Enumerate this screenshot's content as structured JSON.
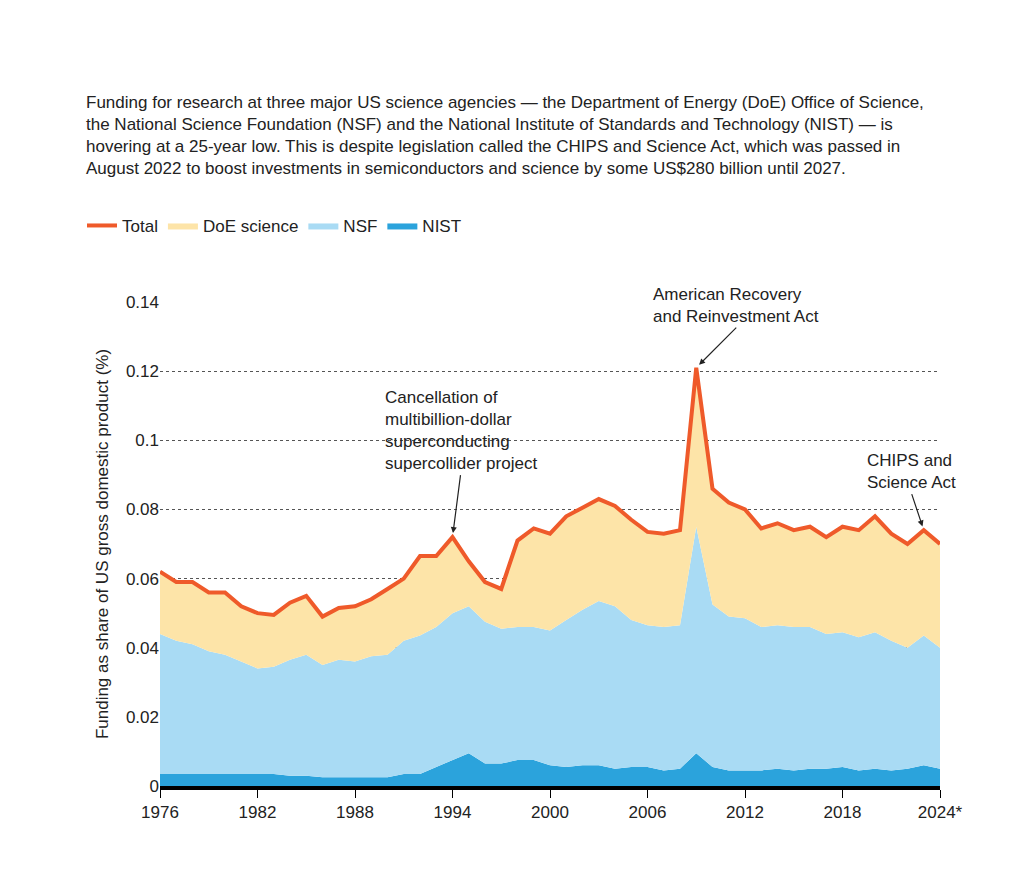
{
  "chart_data": {
    "type": "area",
    "subtitle": "Funding for research at three major US science agencies — the Department of Energy (DoE) Office of Science, the National Science Foundation (NSF) and the National Institute of Standards and Technology (NIST) — is hovering at a 25-year low. This is despite legislation called the CHIPS and Science Act, which was passed in August 2022 to boost investments in semiconductors and science by some US$280 billion until 2027.",
    "y_label": "Funding as share of US gross domestic product (%)",
    "stacked": true,
    "grid": true,
    "legend": "top",
    "x": [
      1976,
      1977,
      1978,
      1979,
      1980,
      1981,
      1982,
      1983,
      1984,
      1985,
      1986,
      1987,
      1988,
      1989,
      1990,
      1991,
      1992,
      1993,
      1994,
      1995,
      1996,
      1997,
      1998,
      1999,
      2000,
      2001,
      2002,
      2003,
      2004,
      2005,
      2006,
      2007,
      2008,
      2009,
      2010,
      2011,
      2012,
      2013,
      2014,
      2015,
      2016,
      2017,
      2018,
      2019,
      2020,
      2021,
      2022,
      2023,
      2024
    ],
    "xlim": [
      1976,
      2024
    ],
    "xticks": [
      1976,
      1982,
      1988,
      1994,
      2000,
      2006,
      2012,
      2018,
      {
        "value": 2024,
        "label": "2024*"
      }
    ],
    "ylim": [
      0,
      0.14
    ],
    "yticks": [
      0,
      0.02,
      0.04,
      0.06,
      0.08,
      0.1,
      0.12,
      0.14
    ],
    "series": [
      {
        "name": "Total",
        "type": "line",
        "color": "#ef5a2a",
        "values": [
          0.062,
          0.059,
          0.059,
          0.056,
          0.056,
          0.052,
          0.05,
          0.0495,
          0.053,
          0.055,
          0.049,
          0.0515,
          0.052,
          0.054,
          0.057,
          0.06,
          0.0665,
          0.0665,
          0.072,
          0.065,
          0.059,
          0.057,
          0.071,
          0.0745,
          0.073,
          0.078,
          0.0805,
          0.083,
          0.081,
          0.077,
          0.0735,
          0.073,
          0.074,
          0.121,
          0.086,
          0.082,
          0.08,
          0.0745,
          0.076,
          0.074,
          0.075,
          0.072,
          0.075,
          0.074,
          0.078,
          0.073,
          0.07,
          0.074,
          0.07
        ]
      },
      {
        "name": "DoE science",
        "type": "area",
        "color": "#fde4a8",
        "values": [
          0.018,
          0.017,
          0.018,
          0.017,
          0.018,
          0.016,
          0.016,
          0.015,
          0.0165,
          0.017,
          0.014,
          0.015,
          0.016,
          0.0165,
          0.019,
          0.018,
          0.023,
          0.0205,
          0.022,
          0.013,
          0.0115,
          0.0115,
          0.025,
          0.0285,
          0.028,
          0.03,
          0.0295,
          0.0295,
          0.029,
          0.029,
          0.027,
          0.027,
          0.0275,
          0.046,
          0.0335,
          0.033,
          0.0315,
          0.0285,
          0.0295,
          0.028,
          0.029,
          0.028,
          0.0305,
          0.031,
          0.0335,
          0.031,
          0.03,
          0.0305,
          0.03
        ]
      },
      {
        "name": "NSF",
        "type": "area",
        "color": "#a9dbf4",
        "values": [
          0.0405,
          0.0385,
          0.0375,
          0.0355,
          0.0345,
          0.0325,
          0.0305,
          0.031,
          0.0335,
          0.035,
          0.0325,
          0.034,
          0.0335,
          0.035,
          0.0355,
          0.0385,
          0.04,
          0.0405,
          0.0425,
          0.0425,
          0.041,
          0.039,
          0.0385,
          0.0385,
          0.039,
          0.0425,
          0.045,
          0.0475,
          0.047,
          0.0425,
          0.041,
          0.0415,
          0.0415,
          0.0655,
          0.047,
          0.0445,
          0.044,
          0.0415,
          0.0415,
          0.0415,
          0.041,
          0.039,
          0.039,
          0.0385,
          0.0395,
          0.0375,
          0.035,
          0.0375,
          0.035
        ]
      },
      {
        "name": "NIST",
        "type": "area",
        "color": "#2ba3dc",
        "values": [
          0.0035,
          0.0035,
          0.0035,
          0.0035,
          0.0035,
          0.0035,
          0.0035,
          0.0035,
          0.003,
          0.003,
          0.0025,
          0.0025,
          0.0025,
          0.0025,
          0.0025,
          0.0035,
          0.0035,
          0.0055,
          0.0075,
          0.0095,
          0.0065,
          0.0065,
          0.0075,
          0.0075,
          0.006,
          0.0055,
          0.006,
          0.006,
          0.005,
          0.0055,
          0.0055,
          0.0045,
          0.005,
          0.0095,
          0.0055,
          0.0045,
          0.0045,
          0.0045,
          0.005,
          0.0045,
          0.005,
          0.005,
          0.0055,
          0.0045,
          0.005,
          0.0045,
          0.005,
          0.006,
          0.005
        ]
      }
    ],
    "annotations": [
      {
        "text": "Cancellation of\nmultibillion-dollar\nsuperconducting\nsupercollider project",
        "x": 1994
      },
      {
        "text": "American Recovery\nand Reinvestment Act",
        "x": 2009
      },
      {
        "text": "CHIPS and\nScience Act",
        "x": 2023
      }
    ]
  }
}
